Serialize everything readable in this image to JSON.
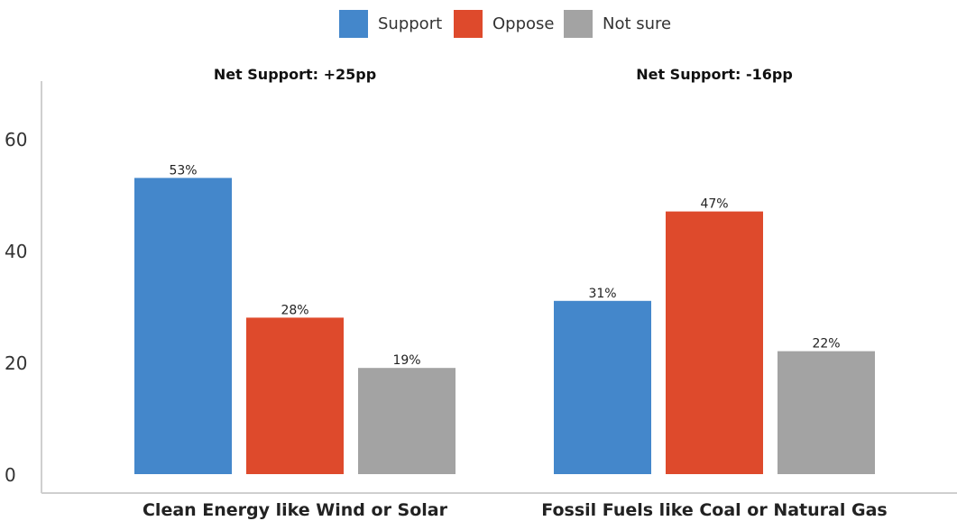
{
  "chart_data": {
    "type": "bar",
    "categories": [
      "Clean Energy like Wind or Solar",
      "Fossil Fuels like Coal or Natural Gas"
    ],
    "series": [
      {
        "name": "Support",
        "values": [
          53,
          31
        ],
        "labels": [
          "53%",
          "31%"
        ],
        "color": "#4487CB"
      },
      {
        "name": "Oppose",
        "values": [
          28,
          47
        ],
        "labels": [
          "28%",
          "47%"
        ],
        "color": "#DE4A2C"
      },
      {
        "name": "Not sure",
        "values": [
          19,
          22
        ],
        "labels": [
          "19%",
          "22%"
        ],
        "color": "#A3A3A3"
      }
    ],
    "group_titles": [
      "Net Support: +25pp",
      "Net Support: -16pp"
    ],
    "yticks": [
      0,
      20,
      40,
      60
    ],
    "ylim": [
      0,
      60
    ],
    "legend_position": "top-center",
    "grid": false
  }
}
